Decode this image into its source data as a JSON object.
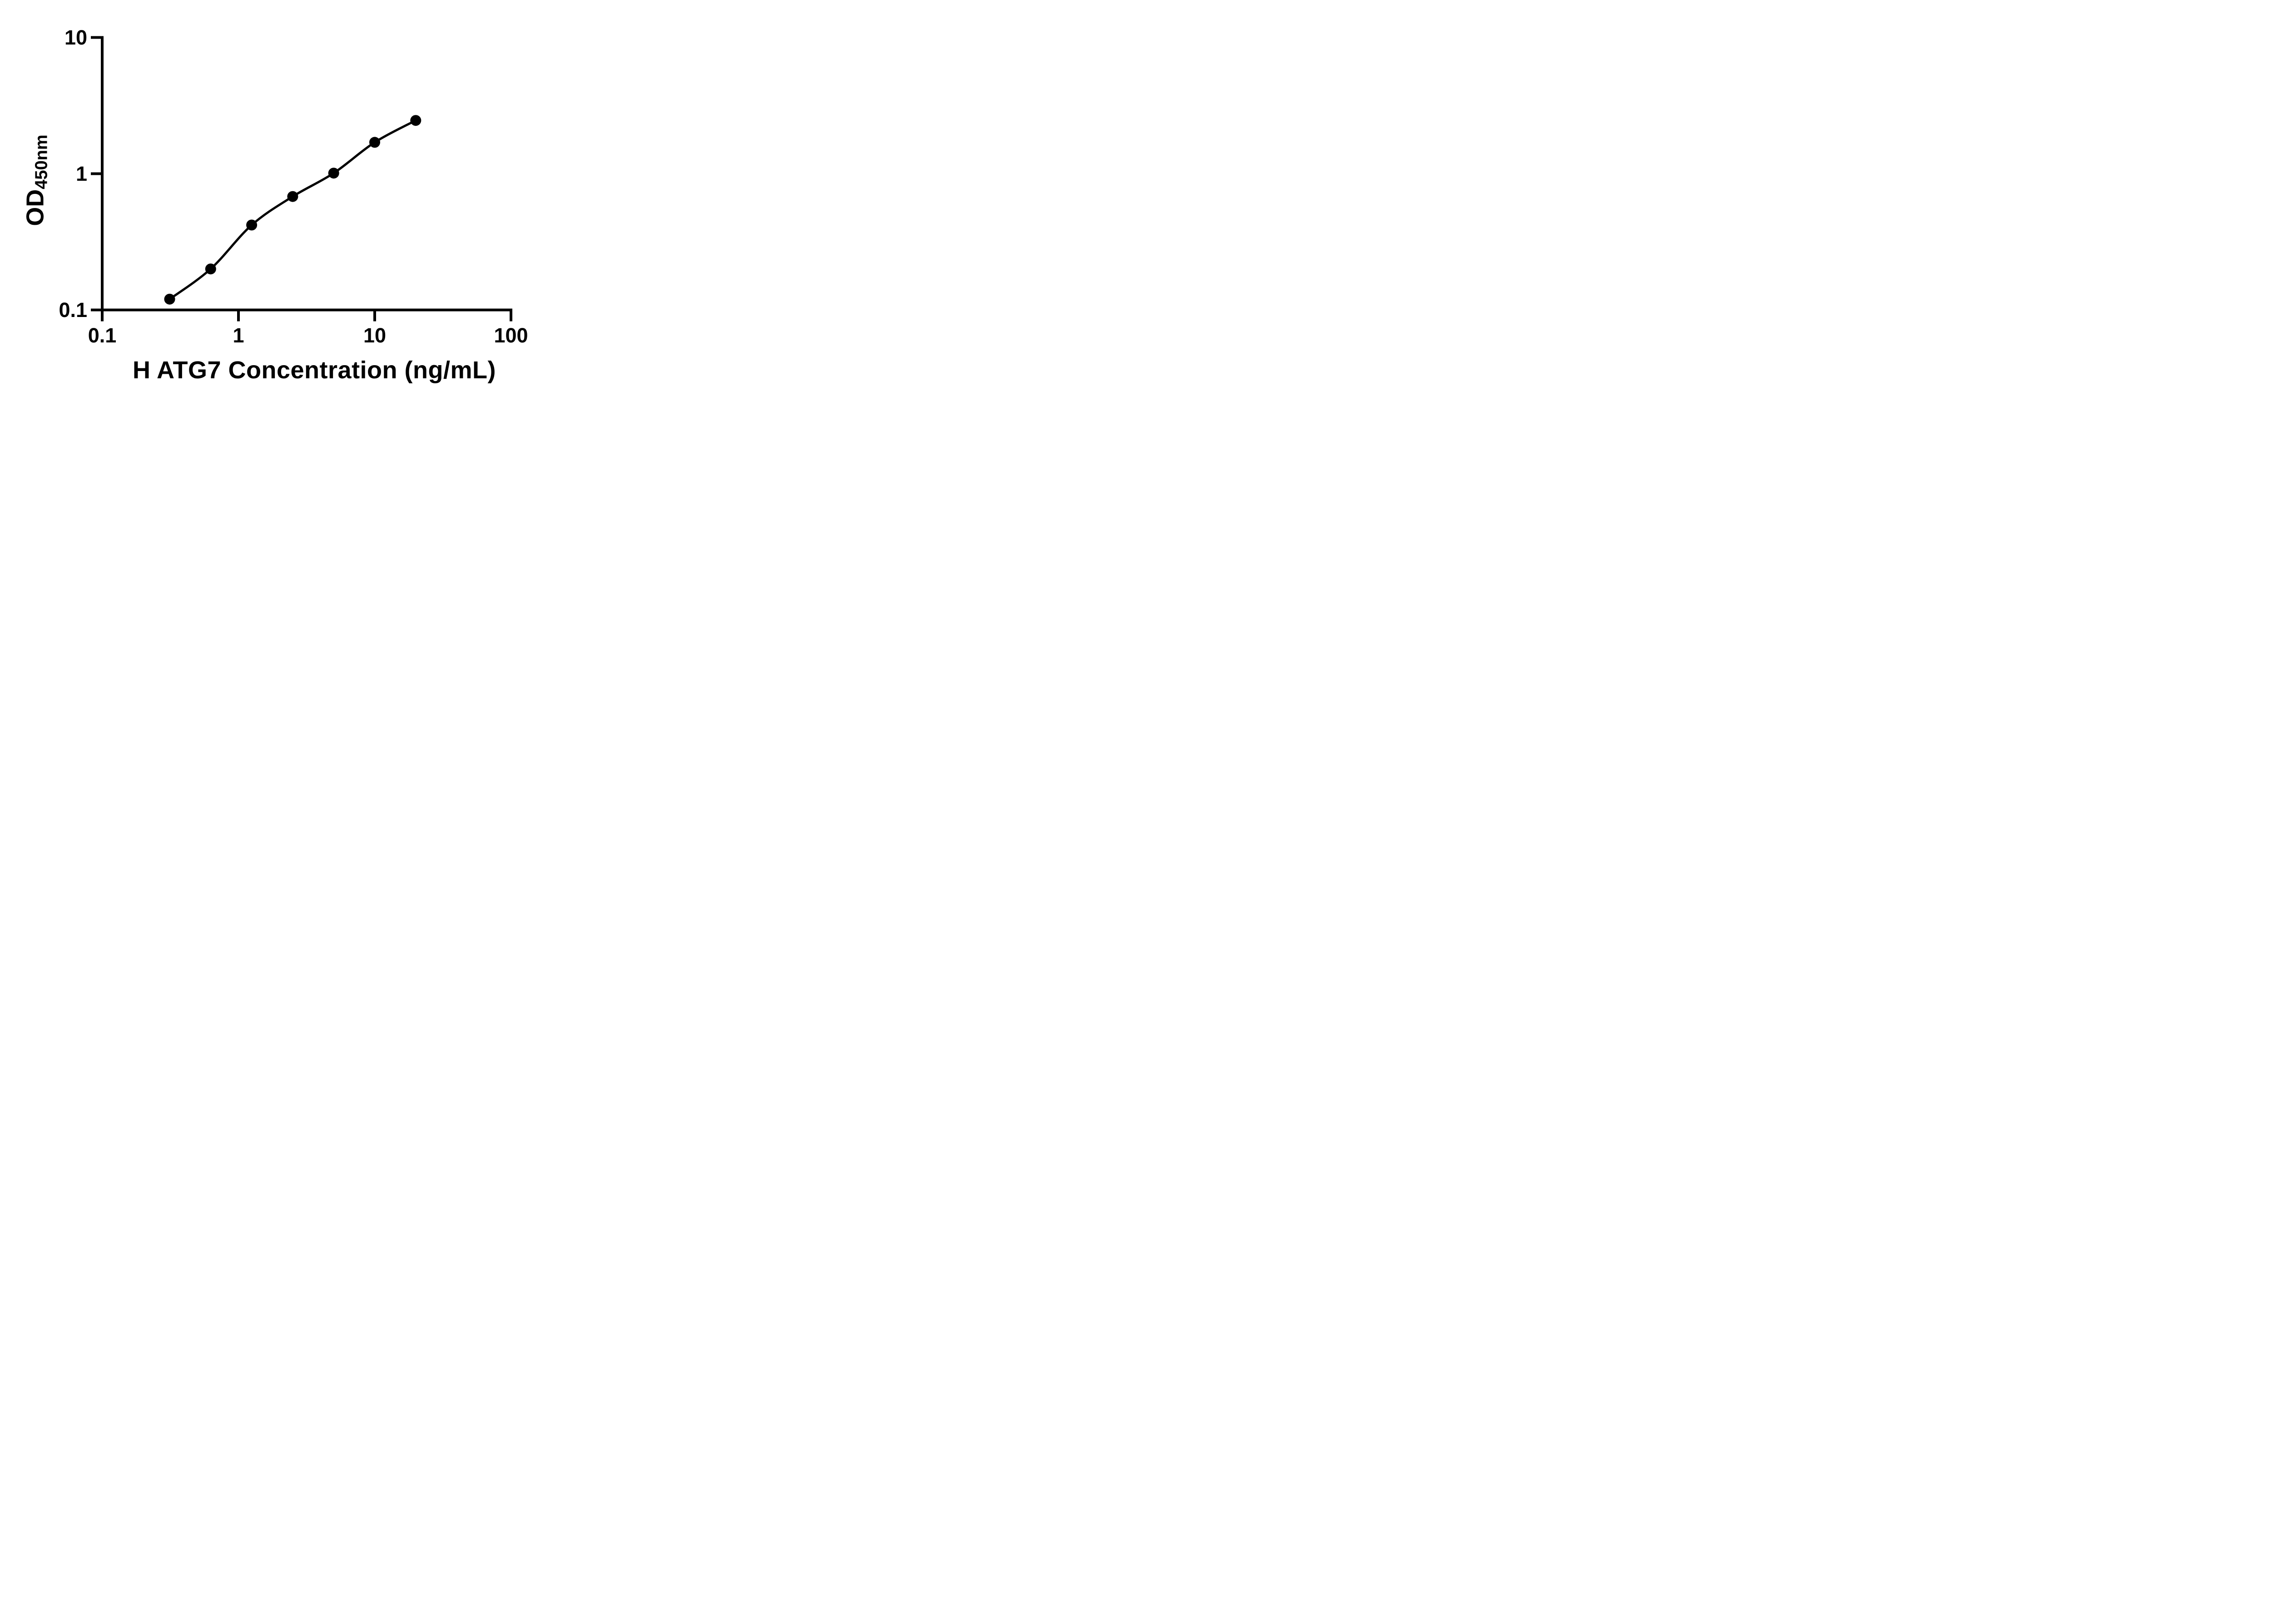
{
  "figure": {
    "background_color": "#ffffff",
    "ink_color": "#000000"
  },
  "chart_data": {
    "type": "scatter",
    "title": "",
    "xlabel": "H ATG7 Concentration (ng/mL)",
    "ylabel_main": "OD",
    "ylabel_sub": "450nm",
    "x_scale": "log10",
    "y_scale": "log10",
    "xlim": [
      0.1,
      100
    ],
    "ylim": [
      0.1,
      10
    ],
    "x_tick_values": [
      0.1,
      1,
      10,
      100
    ],
    "x_tick_labels": [
      "0.1",
      "1",
      "10",
      "100"
    ],
    "y_tick_values": [
      10,
      1,
      0.1
    ],
    "y_tick_labels": [
      "10",
      "1",
      "0.1"
    ],
    "grid": false,
    "legend_position": "none",
    "marker_color": "#000000",
    "line_color": "#000000",
    "series": [
      {
        "marker": "filled-circle",
        "connector": "smooth-fit-curve",
        "x": [
          0.3125,
          0.625,
          1.25,
          2.5,
          5,
          10,
          20
        ],
        "y": [
          0.12,
          0.2,
          0.42,
          0.68,
          1.01,
          1.7,
          2.46
        ]
      }
    ]
  }
}
